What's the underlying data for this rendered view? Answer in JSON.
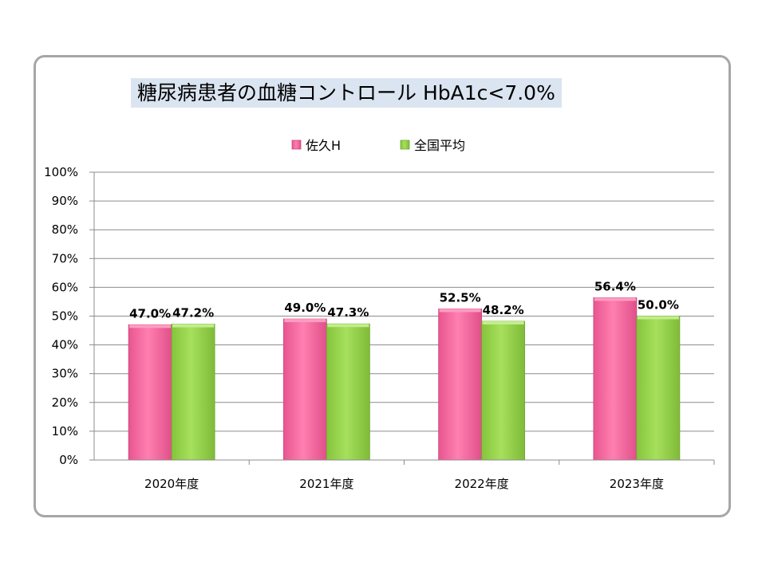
{
  "chart_data": {
    "type": "bar",
    "title": "糖尿病患者の血糖コントロール HbA1c<7.0%",
    "categories": [
      "2020年度",
      "2021年度",
      "2022年度",
      "2023年度"
    ],
    "series": [
      {
        "name": "佐久H",
        "values": [
          47.0,
          49.0,
          52.5,
          56.4
        ],
        "labels": [
          "47.0%",
          "49.0%",
          "52.5%",
          "56.4%"
        ]
      },
      {
        "name": "全国平均",
        "values": [
          47.2,
          47.3,
          48.2,
          50.0
        ],
        "labels": [
          "47.2%",
          "47.3%",
          "48.2%",
          "50.0%"
        ]
      }
    ],
    "ylim": [
      0,
      100
    ],
    "yticks": [
      "0%",
      "10%",
      "20%",
      "30%",
      "40%",
      "50%",
      "60%",
      "70%",
      "80%",
      "90%",
      "100%"
    ],
    "grid": true,
    "legend_position": "top",
    "colors": [
      "#ff6fa5",
      "#99d64f"
    ]
  }
}
